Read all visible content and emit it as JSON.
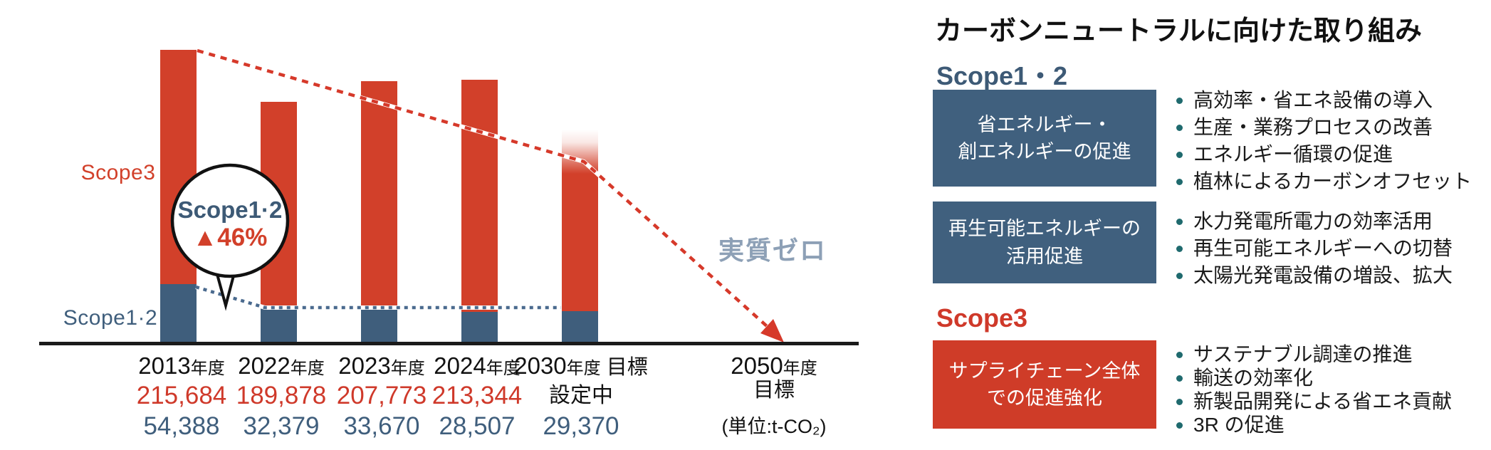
{
  "chart": {
    "series_labels": {
      "scope3": "Scope3",
      "scope12": "Scope1·2"
    },
    "callout": {
      "line1": "Scope1·2",
      "line2": "▲46%"
    },
    "net_zero_label": "実質ゼロ",
    "columns": [
      {
        "year": "2013",
        "suffix": "年度",
        "scope3": "215,684",
        "scope12": "54,388"
      },
      {
        "year": "2022",
        "suffix": "年度",
        "scope3": "189,878",
        "scope12": "32,379"
      },
      {
        "year": "2023",
        "suffix": "年度",
        "scope3": "207,773",
        "scope12": "33,670"
      },
      {
        "year": "2024",
        "suffix": "年度",
        "scope3": "213,344",
        "scope12": "28,507"
      },
      {
        "year": "2030",
        "suffix": "年度",
        "extra": "目標",
        "scope3": "設定中",
        "scope3_is_note": true,
        "scope12": "29,370"
      },
      {
        "year": "2050",
        "suffix": "年度",
        "goal_line": "目標",
        "unit": "(単位:t-CO₂)"
      }
    ]
  },
  "chart_data": {
    "type": "stacked-bar",
    "title": "",
    "unit": "t-CO2",
    "categories": [
      "2013年度",
      "2022年度",
      "2023年度",
      "2024年度",
      "2030年度 目標",
      "2050年度 目標"
    ],
    "series": [
      {
        "name": "Scope1·2",
        "color": "#3f5e7c",
        "values": [
          54388,
          32379,
          33670,
          28507,
          29370,
          null
        ]
      },
      {
        "name": "Scope3",
        "color": "#d2402a",
        "values": [
          215684,
          189878,
          207773,
          213344,
          null,
          null
        ]
      }
    ],
    "annotations": {
      "scope12_reduction_callout": "Scope1·2 ▲46%",
      "scope3_2030_status": "設定中",
      "target_2050": "実質ゼロ",
      "unit_note": "(単位:t-CO₂)",
      "trend_lines": [
        "Scope3 dashed red arrow to net zero 2050",
        "Scope1·2 dashed blue level line"
      ]
    },
    "ylim": [
      0,
      280000
    ],
    "grid": false,
    "legend_position": "left-of-bars"
  },
  "panel": {
    "title": "カーボンニュートラルに向けた取り組み",
    "scope12_heading": "Scope1・2",
    "scope3_heading": "Scope3",
    "boxes": [
      {
        "type": "blue",
        "lines": [
          "省エネルギー・",
          "創エネルギーの促進"
        ],
        "bullets": [
          "高効率・省エネ設備の導入",
          "生産・業務プロセスの改善",
          "エネルギー循環の促進",
          "植林によるカーボンオフセット"
        ]
      },
      {
        "type": "blue",
        "lines": [
          "再生可能エネルギーの",
          "活用促進"
        ],
        "bullets": [
          "水力発電所電力の効率活用",
          "再生可能エネルギーへの切替",
          "太陽光発電設備の増設、拡大"
        ]
      },
      {
        "type": "red",
        "lines": [
          "サプライチェーン全体",
          "での促進強化"
        ],
        "bullets": [
          "サステナブル調達の推進",
          "輸送の効率化",
          "新製品開発による省エネ貢献",
          "3R の促進"
        ]
      }
    ],
    "colors": {
      "accent_red": "#d2402a",
      "accent_blue": "#3f5e7c",
      "bullet_teal": "#1f6a6e",
      "net_zero_gray": "#8da0b6"
    }
  }
}
